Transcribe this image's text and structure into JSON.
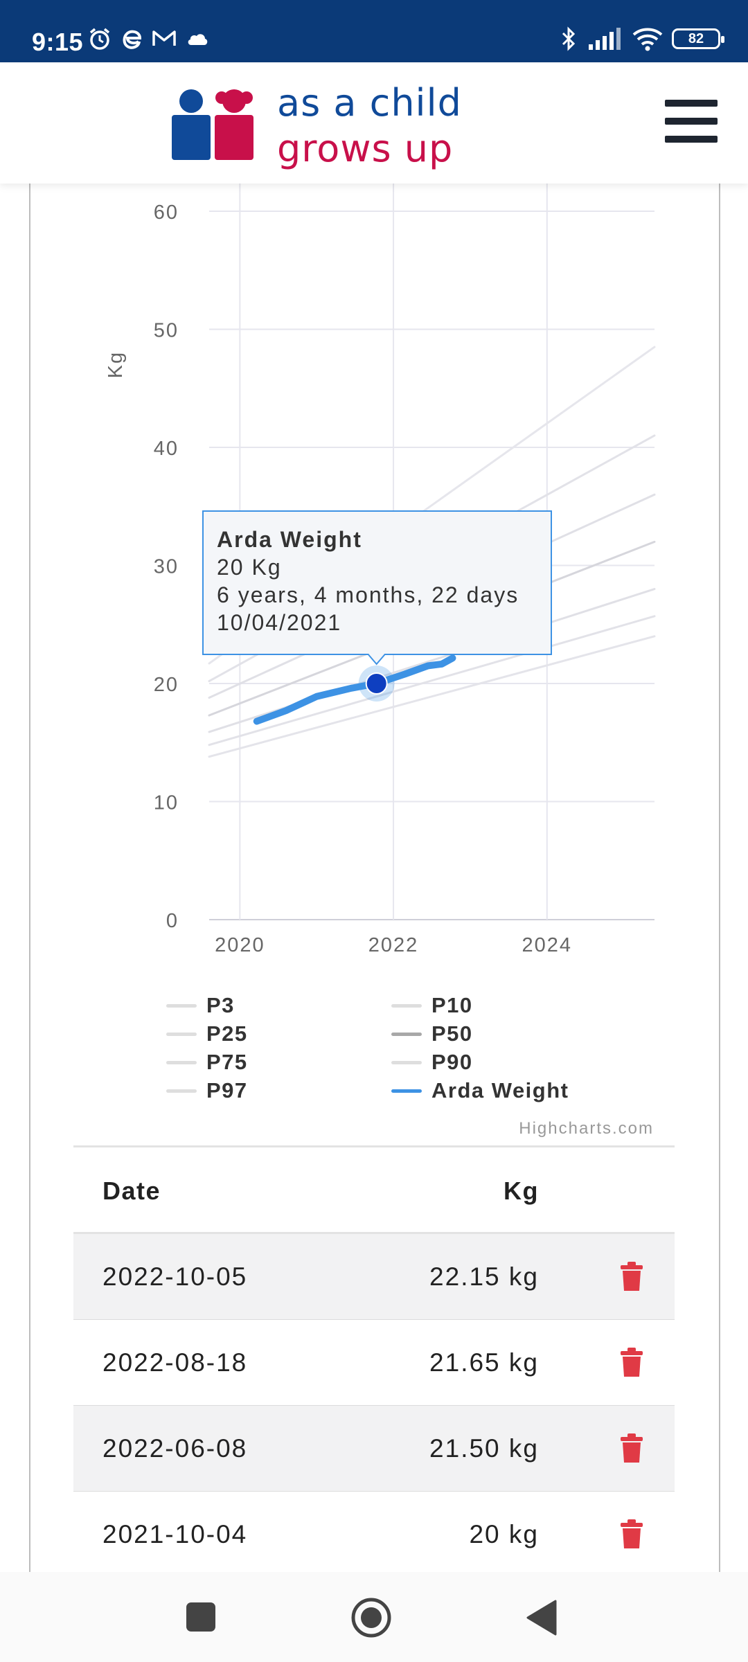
{
  "status_bar": {
    "time": "9:15",
    "battery": "82",
    "left_icons": [
      "alarm-icon",
      "edge-browser-icon",
      "gmail-icon",
      "cloud-icon"
    ],
    "right_icons": [
      "bluetooth-icon",
      "signal-icon",
      "wifi-icon",
      "battery-icon"
    ],
    "background": "#0b3a78"
  },
  "header": {
    "logo_line1": "as a child",
    "logo_line2": "grows up",
    "brand_blue": "#104a99",
    "brand_red": "#c8104a",
    "menu_icon": "hamburger-menu-icon"
  },
  "chart_data": {
    "type": "line",
    "ylabel": "Kg",
    "ylim": [
      0,
      60
    ],
    "yticks": [
      "0",
      "10",
      "20",
      "30",
      "40",
      "50",
      "60"
    ],
    "xticks": [
      "2020",
      "2022",
      "2024"
    ],
    "xlim": [
      2019.6,
      2025.4
    ],
    "grid": true,
    "series": [
      {
        "name": "P3",
        "color": "#e4e4ea",
        "x": [
          2019.6,
          2025.4
        ],
        "y": [
          13.8,
          24.0
        ]
      },
      {
        "name": "P10",
        "color": "#e2e2e8",
        "x": [
          2019.6,
          2025.4
        ],
        "y": [
          14.8,
          25.7
        ]
      },
      {
        "name": "P25",
        "color": "#e0e0e6",
        "x": [
          2019.6,
          2025.4
        ],
        "y": [
          15.9,
          28.0
        ]
      },
      {
        "name": "P50",
        "color": "#d6d6dc",
        "x": [
          2019.6,
          2025.4
        ],
        "y": [
          17.3,
          32.0
        ]
      },
      {
        "name": "P75",
        "color": "#e0e0e6",
        "x": [
          2019.6,
          2025.4
        ],
        "y": [
          18.8,
          36.0
        ]
      },
      {
        "name": "P90",
        "color": "#e2e2e8",
        "x": [
          2019.6,
          2025.4
        ],
        "y": [
          20.2,
          41.0
        ]
      },
      {
        "name": "P97",
        "color": "#e6e6ec",
        "x": [
          2019.6,
          2025.4
        ],
        "y": [
          21.7,
          48.5
        ]
      },
      {
        "name": "Arda Weight",
        "color": "#3d92e4",
        "x": [
          2020.22,
          2020.6,
          2021.0,
          2021.45,
          2021.78,
          2022.15,
          2022.45,
          2022.63,
          2022.77
        ],
        "y": [
          16.8,
          17.7,
          18.9,
          19.6,
          20.0,
          20.8,
          21.5,
          21.65,
          22.15
        ]
      }
    ],
    "tooltip": {
      "title": "Arda Weight",
      "line1": "20 Kg",
      "line2": "6 years, 4 months, 22 days",
      "line3": "10/04/2021",
      "x": 2021.78,
      "y": 20
    },
    "credits": "Highcharts.com"
  },
  "legend": [
    {
      "name": "P3",
      "color": "#dedede"
    },
    {
      "name": "P10",
      "color": "#dedede"
    },
    {
      "name": "P25",
      "color": "#dedede"
    },
    {
      "name": "P50",
      "color": "#a8a8a8"
    },
    {
      "name": "P75",
      "color": "#dedede"
    },
    {
      "name": "P90",
      "color": "#dedede"
    },
    {
      "name": "P97",
      "color": "#dedede"
    },
    {
      "name": "Arda Weight",
      "color": "#3d92e4"
    }
  ],
  "table": {
    "headers": {
      "date": "Date",
      "kg": "Kg"
    },
    "rows": [
      {
        "date": "2022-10-05",
        "kg": "22.15 kg"
      },
      {
        "date": "2022-08-18",
        "kg": "21.65 kg"
      },
      {
        "date": "2022-06-08",
        "kg": "21.50 kg"
      },
      {
        "date": "2021-10-04",
        "kg": "20 kg"
      }
    ],
    "delete_icon": "trash-icon",
    "delete_color": "#e03a45"
  },
  "nav_bar": {
    "icons": [
      "recents-square-icon",
      "home-circle-icon",
      "back-triangle-icon"
    ]
  }
}
